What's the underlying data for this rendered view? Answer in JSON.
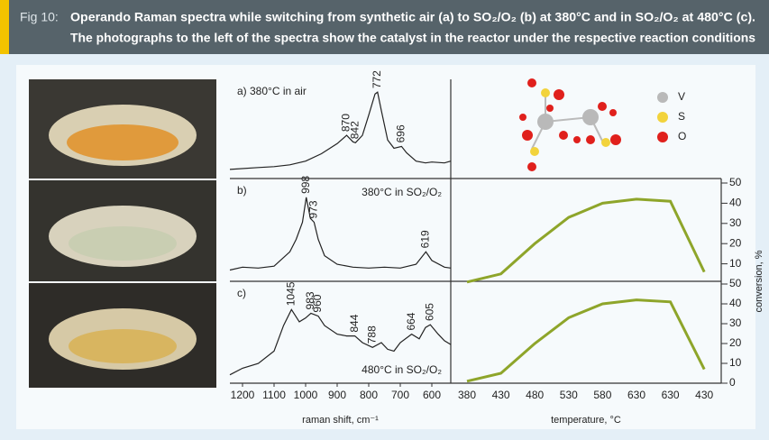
{
  "header": {
    "label": "Fig 10:",
    "line1": "Operando Raman spectra while switching from synthetic air (a) to SO₂/O₂ (b) at 380°C and in SO₂/O₂ at 480°C (c).",
    "line2": "The photographs to the left of the spectra show the catalyst in the reactor under the respective reaction conditions"
  },
  "legend": [
    {
      "label": "V",
      "color": "#b9b9b9"
    },
    {
      "label": "S",
      "color": "#f2d33c"
    },
    {
      "label": "O",
      "color": "#e0201c"
    }
  ],
  "chart_data": [
    {
      "type": "line",
      "title": "a) 380°C in air",
      "color": "#222222",
      "x": [
        1240,
        1150,
        1100,
        1050,
        1000,
        950,
        900,
        870,
        850,
        842,
        820,
        800,
        780,
        772,
        760,
        740,
        720,
        696,
        680,
        650,
        620,
        600,
        560,
        540
      ],
      "values": [
        7,
        9,
        10,
        12,
        16,
        24,
        35,
        44,
        37,
        36,
        44,
        66,
        89,
        91,
        71,
        39,
        30,
        32,
        25,
        16,
        14,
        15,
        14,
        16
      ],
      "xlim": [
        1240,
        540
      ],
      "ylim": [
        0,
        100
      ],
      "peaks": [
        870,
        842,
        772,
        696
      ]
    },
    {
      "type": "line",
      "title": "b)",
      "annotation": "380°C in SO₂/O₂",
      "color": "#222222",
      "x": [
        1240,
        1200,
        1150,
        1100,
        1050,
        1030,
        1010,
        998,
        985,
        973,
        960,
        940,
        900,
        850,
        800,
        750,
        700,
        650,
        619,
        600,
        560,
        540
      ],
      "values": [
        9,
        12,
        11,
        13,
        28,
        41,
        59,
        85,
        63,
        59,
        41,
        24,
        15,
        12,
        11,
        12,
        11,
        15,
        28,
        19,
        12,
        11
      ],
      "xlim": [
        1240,
        540
      ],
      "ylim": [
        0,
        100
      ],
      "peaks": [
        998,
        973,
        619
      ]
    },
    {
      "type": "line",
      "title": "c)",
      "annotation": "480°C in SO₂/O₂",
      "color": "#222222",
      "x": [
        1240,
        1200,
        1150,
        1100,
        1070,
        1045,
        1020,
        1000,
        983,
        960,
        940,
        900,
        870,
        844,
        820,
        788,
        760,
        740,
        720,
        700,
        664,
        640,
        620,
        605,
        580,
        560,
        540
      ],
      "values": [
        6,
        13,
        18,
        31,
        58,
        75,
        62,
        66,
        71,
        68,
        58,
        49,
        47,
        47,
        40,
        35,
        40,
        33,
        31,
        40,
        49,
        44,
        56,
        59,
        49,
        42,
        38
      ],
      "xlim": [
        1240,
        540
      ],
      "ylim": [
        0,
        100
      ],
      "xticks": [
        1200,
        1100,
        1000,
        900,
        800,
        700,
        600
      ],
      "xlabel": "raman shift, cm⁻¹",
      "peaks": [
        1045,
        983,
        960,
        844,
        788,
        664,
        605
      ]
    },
    {
      "type": "line",
      "color": "#8ea52a",
      "categories": [
        "380",
        "430",
        "480",
        "530",
        "580",
        "630",
        "630",
        "430"
      ],
      "values": [
        1,
        5,
        20,
        33,
        40,
        42,
        41,
        6
      ],
      "ylim": [
        0,
        50
      ],
      "yticks": [
        10,
        20,
        30,
        40,
        50
      ]
    },
    {
      "type": "line",
      "color": "#8ea52a",
      "categories": [
        "380",
        "430",
        "480",
        "530",
        "580",
        "630",
        "630",
        "430"
      ],
      "values": [
        1,
        5,
        20,
        33,
        40,
        42,
        41,
        7
      ],
      "ylim": [
        0,
        50
      ],
      "yticks": [
        0,
        10,
        20,
        30,
        40,
        50
      ],
      "xlabel": "temperature, °C",
      "ylabel": "conversion, %"
    }
  ]
}
